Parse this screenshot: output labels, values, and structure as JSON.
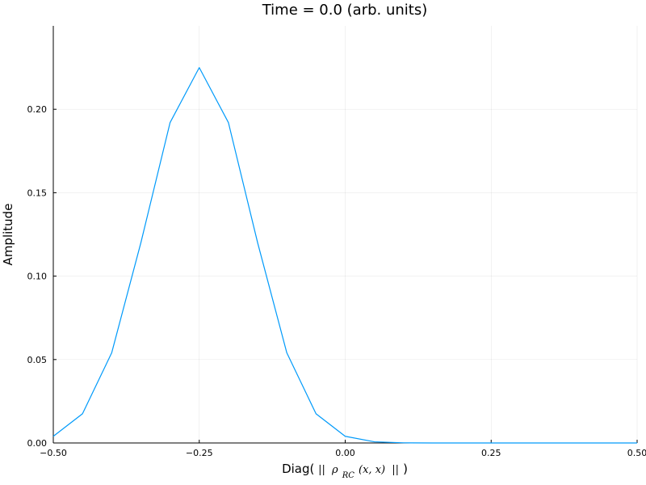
{
  "chart_data": {
    "type": "line",
    "title": "Time = 0.0 (arb. units)",
    "xlabel": {
      "prefix": "Diag( ",
      "norm_open": "||",
      "rho": "ρ",
      "subscript": "RC",
      "args": "(x, x)",
      "norm_close": "||",
      "suffix": " )"
    },
    "ylabel": "Amplitude",
    "xlim": [
      -0.5,
      0.5
    ],
    "ylim": [
      0,
      0.25
    ],
    "xticks": [
      -0.5,
      -0.25,
      0.0,
      0.25,
      0.5
    ],
    "xtick_labels": [
      "−0.50",
      "−0.25",
      "0.00",
      "0.25",
      "0.50"
    ],
    "yticks": [
      0.0,
      0.05,
      0.1,
      0.15,
      0.2
    ],
    "ytick_labels": [
      "0.00",
      "0.05",
      "0.10",
      "0.15",
      "0.20"
    ],
    "grid": true,
    "legend": "none",
    "color": "#009AFA",
    "series": [
      {
        "x": [
          -0.5,
          -0.45,
          -0.4,
          -0.35,
          -0.3,
          -0.25,
          -0.2,
          -0.15,
          -0.1,
          -0.05,
          0.0,
          0.05,
          0.1,
          0.15,
          0.2,
          0.25,
          0.3,
          0.35,
          0.4,
          0.45,
          0.5
        ],
        "y": [
          0.004,
          0.0175,
          0.054,
          0.12,
          0.192,
          0.225,
          0.192,
          0.12,
          0.054,
          0.0175,
          0.004,
          0.0007,
          0.0001,
          0.0,
          0.0,
          0.0,
          0.0,
          0.0,
          0.0,
          0.0,
          0.0
        ]
      }
    ]
  }
}
